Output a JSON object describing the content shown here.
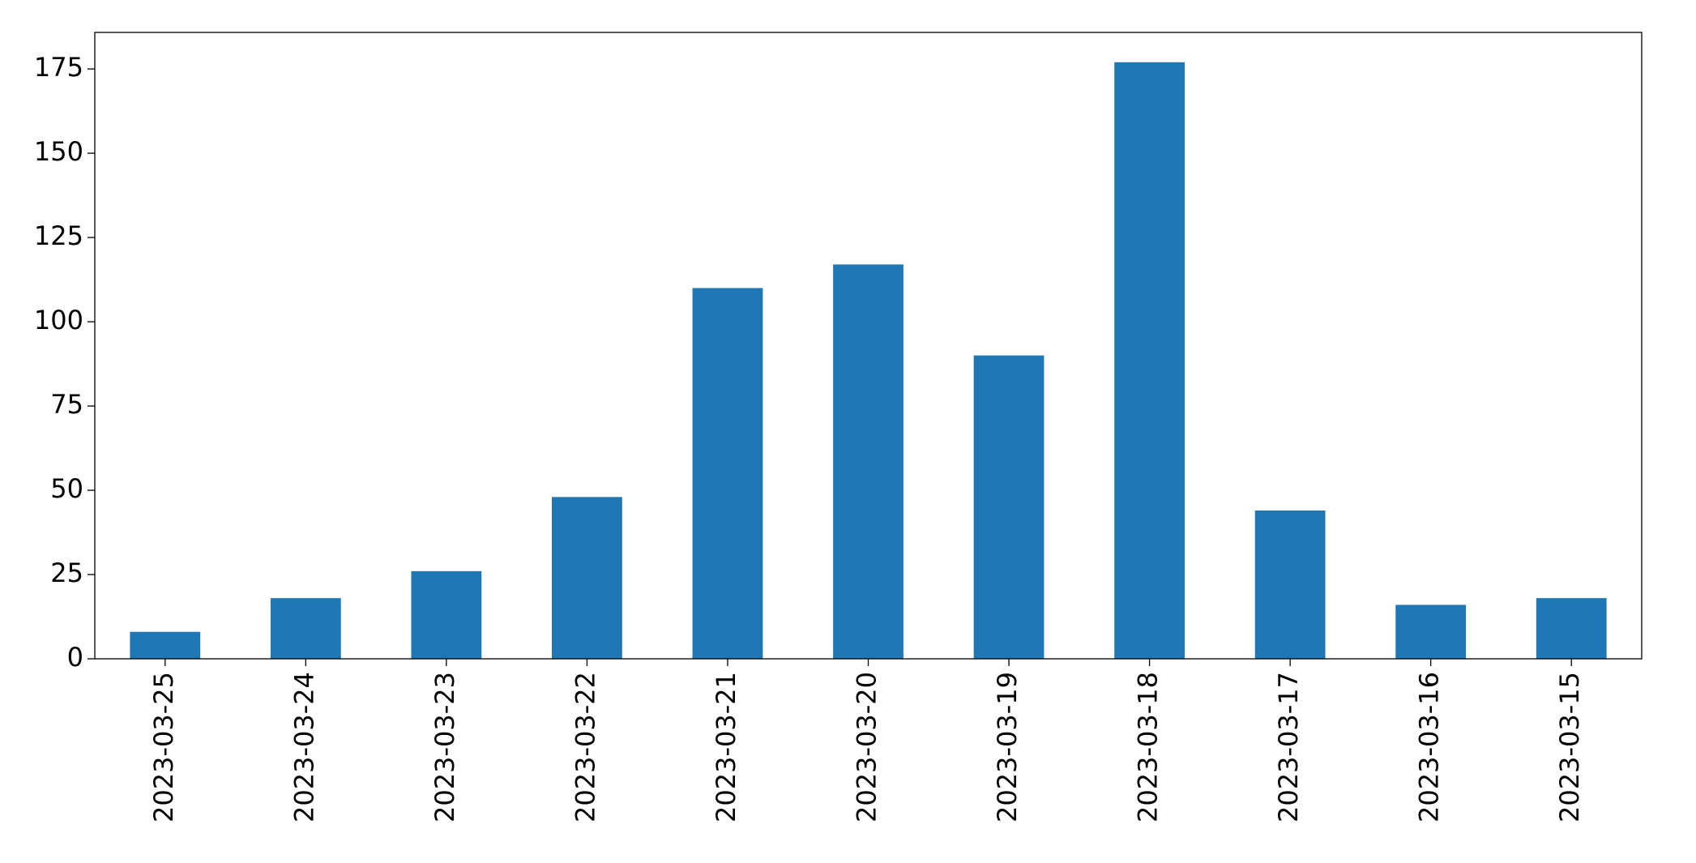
{
  "chart_data": {
    "type": "bar",
    "categories": [
      "2023-03-25",
      "2023-03-24",
      "2023-03-23",
      "2023-03-22",
      "2023-03-21",
      "2023-03-20",
      "2023-03-19",
      "2023-03-18",
      "2023-03-17",
      "2023-03-16",
      "2023-03-15"
    ],
    "values": [
      8,
      18,
      26,
      48,
      110,
      117,
      90,
      177,
      44,
      16,
      18
    ],
    "color": "#1f77b4",
    "ylim": [
      0,
      185.85
    ],
    "yticks": [
      0,
      25,
      50,
      75,
      100,
      125,
      150,
      175
    ],
    "grid": false
  }
}
